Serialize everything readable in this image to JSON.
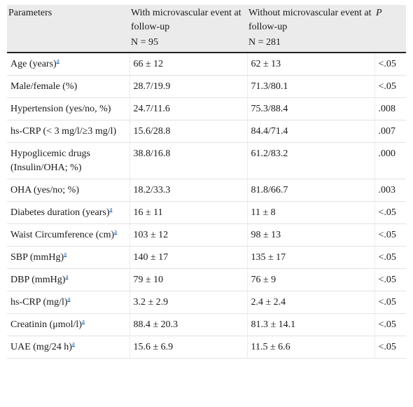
{
  "header": {
    "col1": "Parameters",
    "col2_line1": "With microvascular event at follow-up",
    "col2_n": "N = 95",
    "col3_line1": "Without microvascular event at follow-up",
    "col3_n": "N = 281",
    "col4": "P"
  },
  "rows": [
    {
      "param": "Age (years)",
      "note": "a",
      "with": "66 ± 12",
      "without": "62 ± 13",
      "p": "<.05"
    },
    {
      "param": "Male/female (%)",
      "note": "",
      "with": "28.7/19.9",
      "without": "71.3/80.1",
      "p": "<.05"
    },
    {
      "param": "Hypertension (yes/no, %)",
      "note": "",
      "with": "24.7/11.6",
      "without": "75.3/88.4",
      "p": ".008"
    },
    {
      "param": "hs-CRP (< 3 mg/l/≥3 mg/l)",
      "note": "",
      "with": "15.6/28.8",
      "without": "84.4/71.4",
      "p": ".007"
    },
    {
      "param": "Hypoglicemic drugs (Insulin/OHA; %)",
      "note": "",
      "with": "38.8/16.8",
      "without": "61.2/83.2",
      "p": ".000"
    },
    {
      "param": "OHA (yes/no; %)",
      "note": "",
      "with": "18.2/33.3",
      "without": "81.8/66.7",
      "p": ".003"
    },
    {
      "param": "Diabetes duration (years)",
      "note": "a",
      "with": "16 ± 11",
      "without": "11 ± 8",
      "p": "<.05"
    },
    {
      "param": "Waist Circumference (cm)",
      "note": "a",
      "with": "103 ± 12",
      "without": "98 ± 13",
      "p": "<.05"
    },
    {
      "param": "SBP (mmHg)",
      "note": "a",
      "with": "140 ± 17",
      "without": "135 ± 17",
      "p": "<.05"
    },
    {
      "param": "DBP (mmHg)",
      "note": "a",
      "with": "79 ± 10",
      "without": "76 ± 9",
      "p": "<.05"
    },
    {
      "param": "hs-CRP (mg/l)",
      "note": "a",
      "with": "3.2 ± 2.9",
      "without": "2.4 ± 2.4",
      "p": "<.05"
    },
    {
      "param": "Creatinin (μmol/l)",
      "note": "a",
      "with": "88.4 ± 20.3",
      "without": "81.3 ± 14.1",
      "p": "<.05"
    },
    {
      "param": "UAE (mg/24 h)",
      "note": "a",
      "with": "15.6 ± 6.9",
      "without": "11.5 ± 6.6",
      "p": "<.05"
    }
  ]
}
